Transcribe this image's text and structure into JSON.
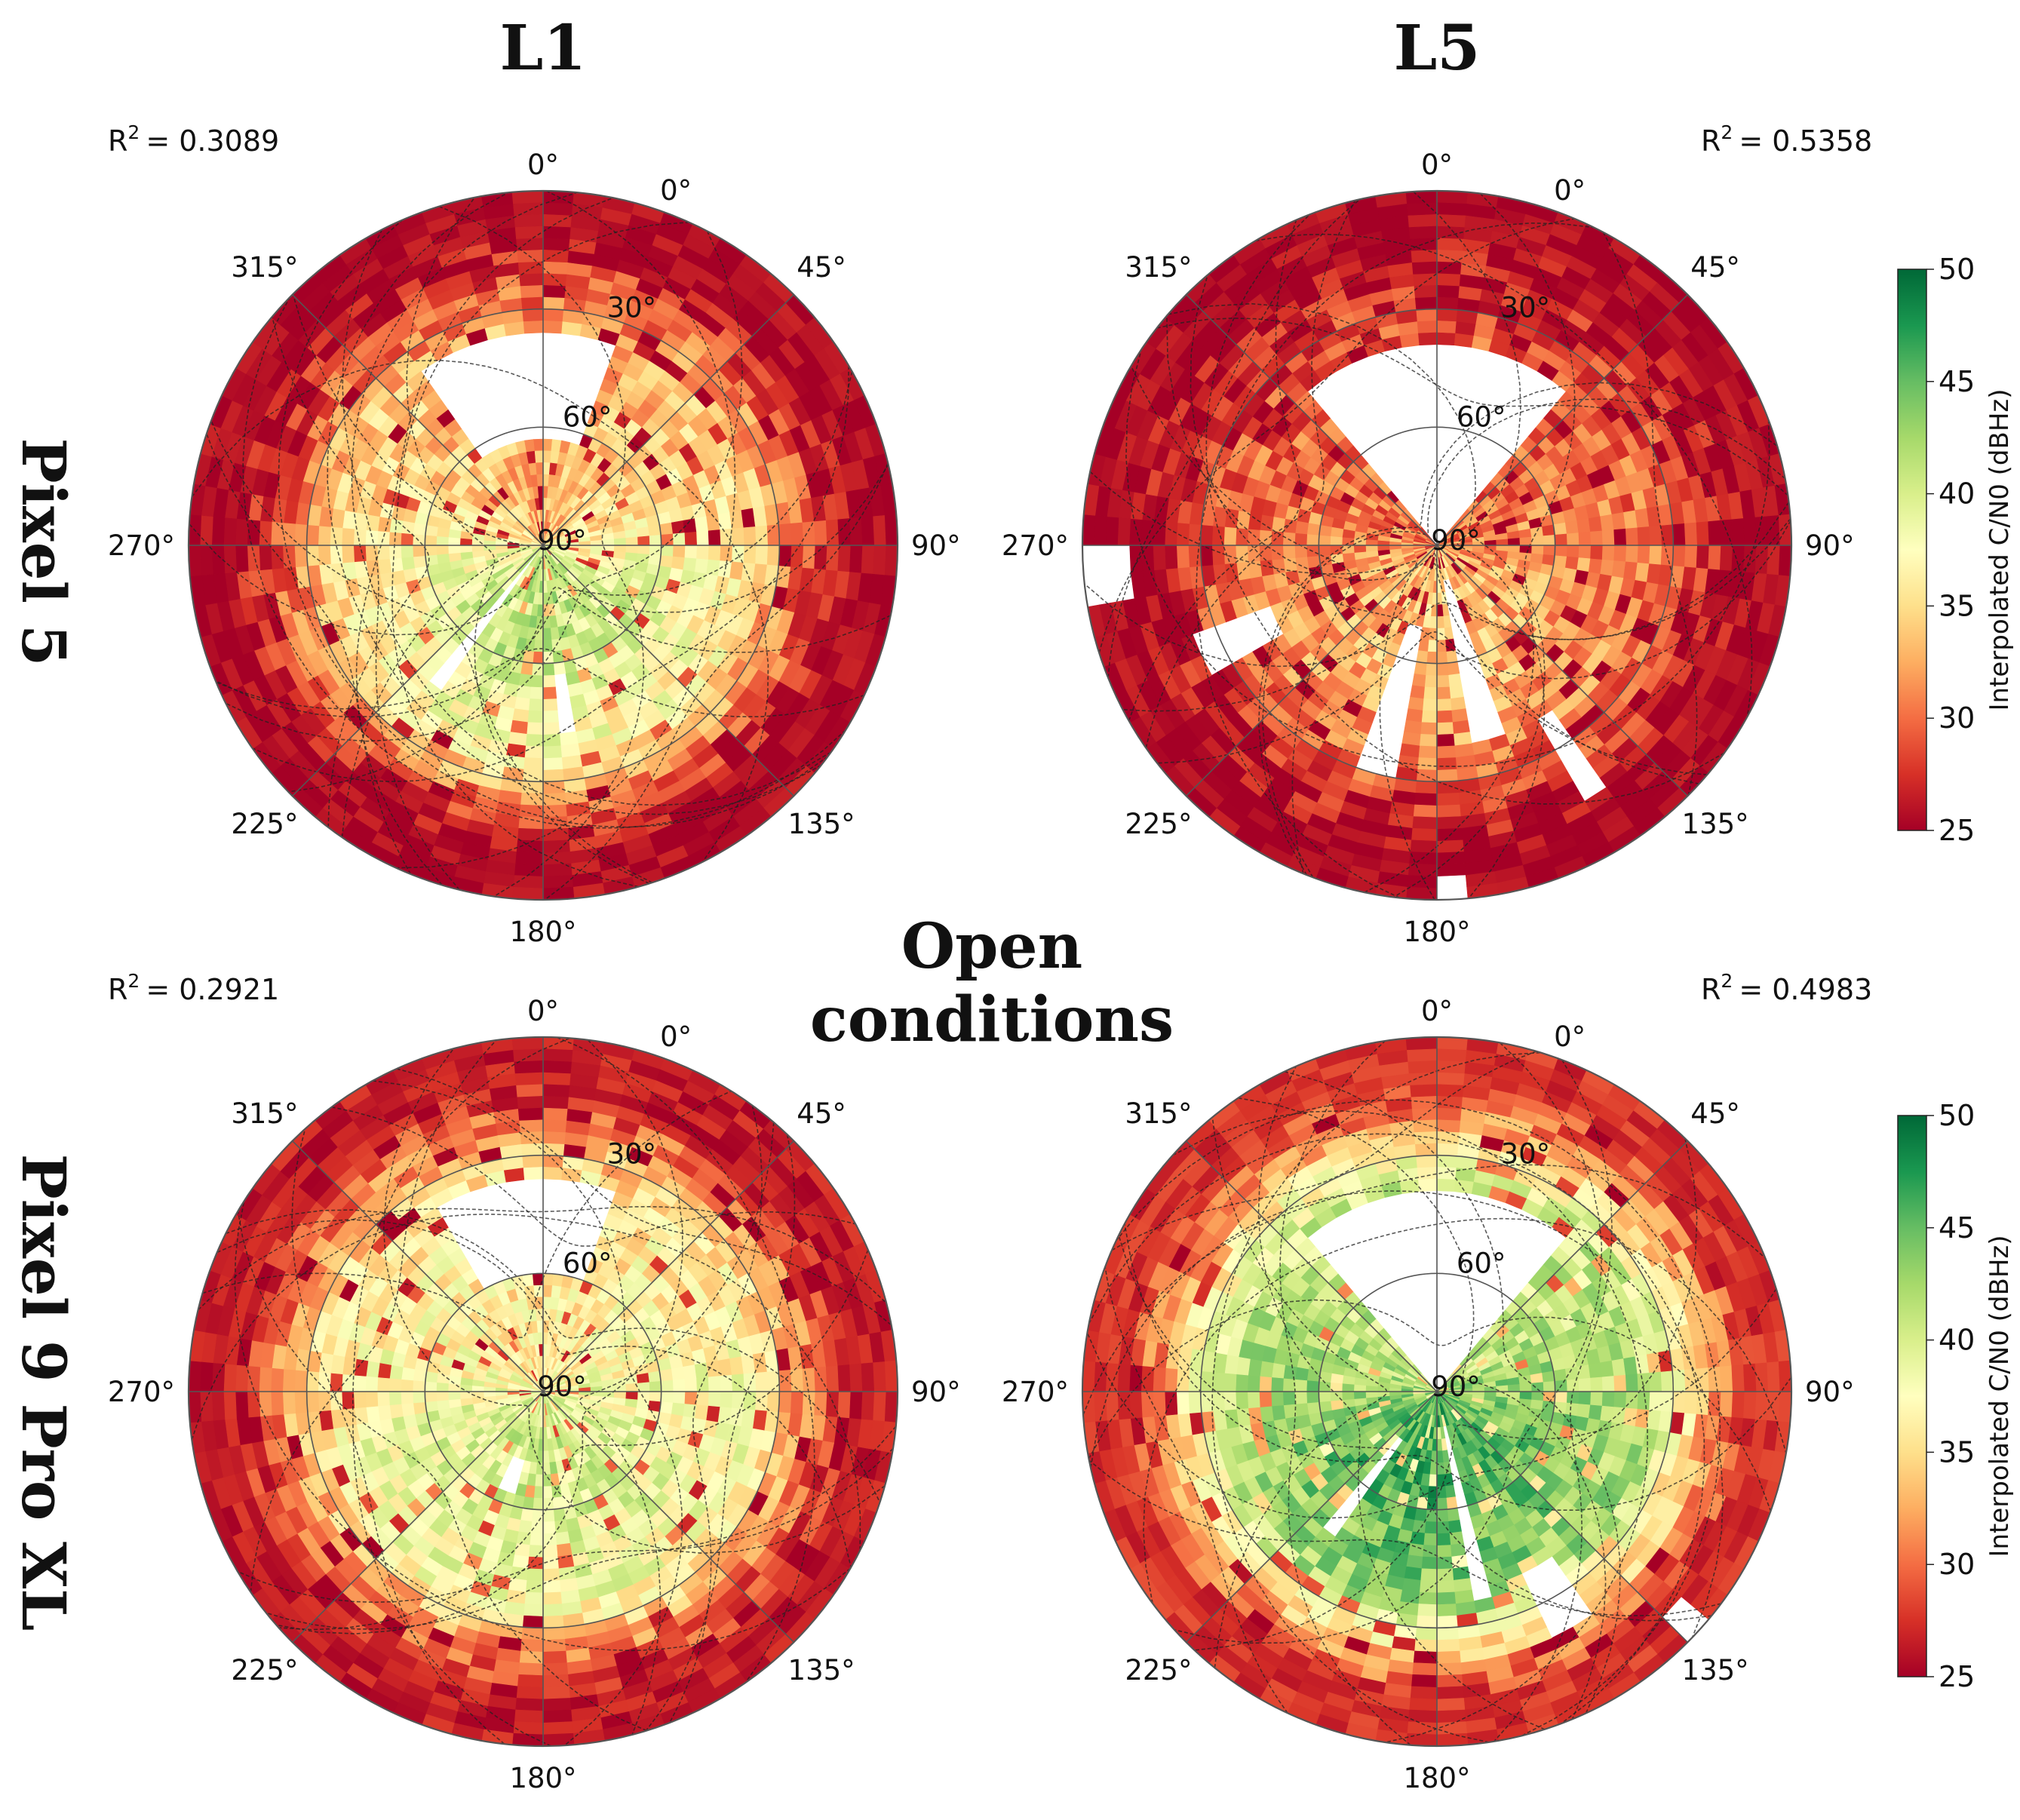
{
  "figure": {
    "col_headers": [
      "L1",
      "L5"
    ],
    "row_labels": [
      "Pixel 5",
      "Pixel 9 Pro XL"
    ],
    "center_label": [
      "Open",
      "conditions"
    ]
  },
  "colorbar": {
    "label": "Interpolated C/N0 (dBHz)",
    "ticks": [
      "50",
      "45",
      "40",
      "35",
      "30",
      "25"
    ],
    "range": [
      25,
      50
    ],
    "colors": [
      "#a50026",
      "#d73027",
      "#f46d43",
      "#fdae61",
      "#fee08b",
      "#ffffbf",
      "#d9ef8b",
      "#a6d96a",
      "#66bd63",
      "#1a9850",
      "#006837"
    ]
  },
  "chart_data": [
    {
      "type": "heatmap",
      "projection": "polar",
      "device": "Pixel 5",
      "band": "L1",
      "r2_text": "= 0.3089",
      "azimuth_labels": [
        "0°",
        "45°",
        "90°",
        "135°",
        "180°",
        "225°",
        "270°",
        "315°"
      ],
      "elevation_labels": [
        "0°",
        "30°",
        "60°",
        "90°"
      ],
      "elevation_range": [
        0,
        90
      ],
      "value_range": [
        25,
        50
      ],
      "typical_cn0": {
        "rim": 25,
        "mid": 33,
        "zenith_south": 41
      },
      "empty_sector": "north, low elevation (approx. 320°–20°, elevation 35°–65°)"
    },
    {
      "type": "heatmap",
      "projection": "polar",
      "device": "Pixel 5",
      "band": "L5",
      "r2_text": "= 0.5358",
      "azimuth_labels": [
        "0°",
        "45°",
        "90°",
        "135°",
        "180°",
        "225°",
        "270°",
        "315°"
      ],
      "elevation_labels": [
        "0°",
        "30°",
        "60°",
        "90°"
      ],
      "elevation_range": [
        0,
        90
      ],
      "value_range": [
        25,
        50
      ],
      "typical_cn0": {
        "rim": 25,
        "mid": 29,
        "zenith_south": 34
      },
      "empty_sector": "north wedge (approx. 318°–42°) and several southern radial gaps"
    },
    {
      "type": "heatmap",
      "projection": "polar",
      "device": "Pixel 9 Pro XL",
      "band": "L1",
      "r2_text": "= 0.2921",
      "azimuth_labels": [
        "0°",
        "45°",
        "90°",
        "135°",
        "180°",
        "225°",
        "270°",
        "315°"
      ],
      "elevation_labels": [
        "0°",
        "30°",
        "60°",
        "90°"
      ],
      "elevation_range": [
        0,
        90
      ],
      "value_range": [
        25,
        50
      ],
      "typical_cn0": {
        "rim": 26,
        "mid": 36,
        "zenith_south": 40
      },
      "empty_sector": "north, elevation 35°–60°"
    },
    {
      "type": "heatmap",
      "projection": "polar",
      "device": "Pixel 9 Pro XL",
      "band": "L5",
      "r2_text": "= 0.4983",
      "azimuth_labels": [
        "0°",
        "45°",
        "90°",
        "135°",
        "180°",
        "225°",
        "270°",
        "315°"
      ],
      "elevation_labels": [
        "0°",
        "30°",
        "60°",
        "90°"
      ],
      "elevation_range": [
        0,
        90
      ],
      "value_range": [
        25,
        50
      ],
      "typical_cn0": {
        "rim": 27,
        "mid": 40,
        "zenith_south": 46
      },
      "empty_sector": "north wedge (approx. 318°–42°) and southern radial gaps"
    }
  ]
}
